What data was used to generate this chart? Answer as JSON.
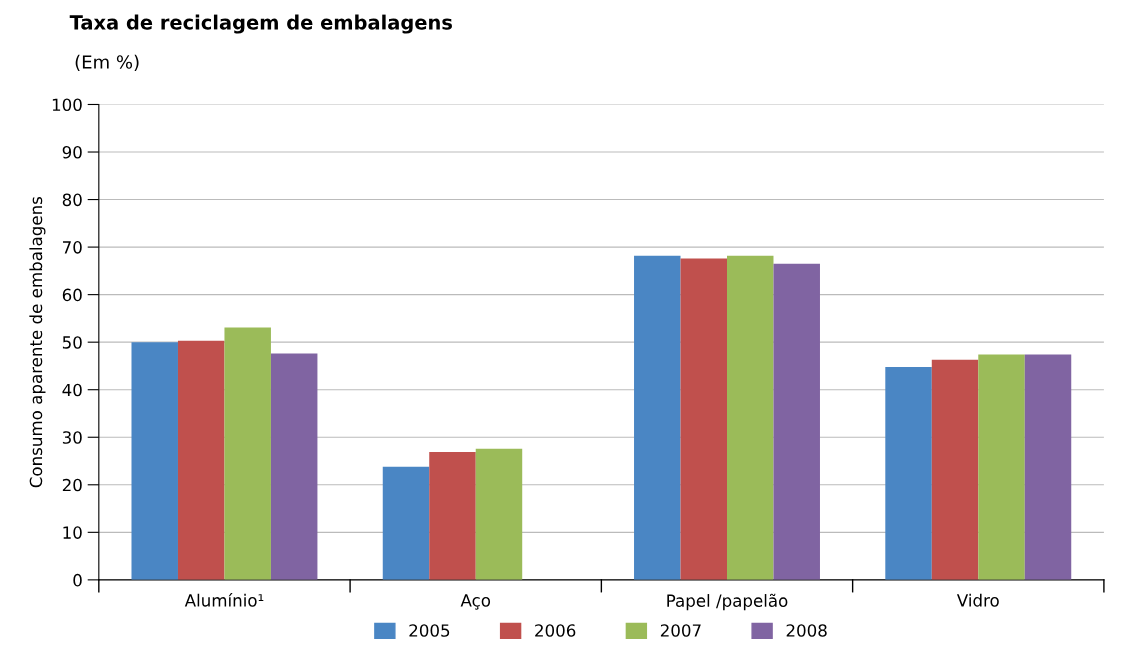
{
  "chart_data": {
    "type": "bar",
    "title": "Taxa de reciclagem de embalagens",
    "subtitle": "(Em %)",
    "ylabel": "Consumo aparente de embalagens",
    "categories": [
      "Alumínio¹",
      "Aço",
      "Papel /papelão",
      "Vidro"
    ],
    "series": [
      {
        "name": "2005",
        "color": "#4a86c4",
        "values": [
          50.0,
          23.8,
          68.2,
          44.8
        ]
      },
      {
        "name": "2006",
        "color": "#c0504d",
        "values": [
          50.3,
          26.9,
          67.6,
          46.3
        ]
      },
      {
        "name": "2007",
        "color": "#9bbb59",
        "values": [
          53.1,
          27.6,
          68.2,
          47.4
        ]
      },
      {
        "name": "2008",
        "color": "#8064a2",
        "values": [
          47.6,
          null,
          66.5,
          47.4
        ]
      }
    ],
    "ylim": [
      0,
      100
    ],
    "yticks": [
      0,
      10,
      20,
      30,
      40,
      50,
      60,
      70,
      80,
      90,
      100
    ],
    "grid": "y",
    "legend": "bottom"
  }
}
